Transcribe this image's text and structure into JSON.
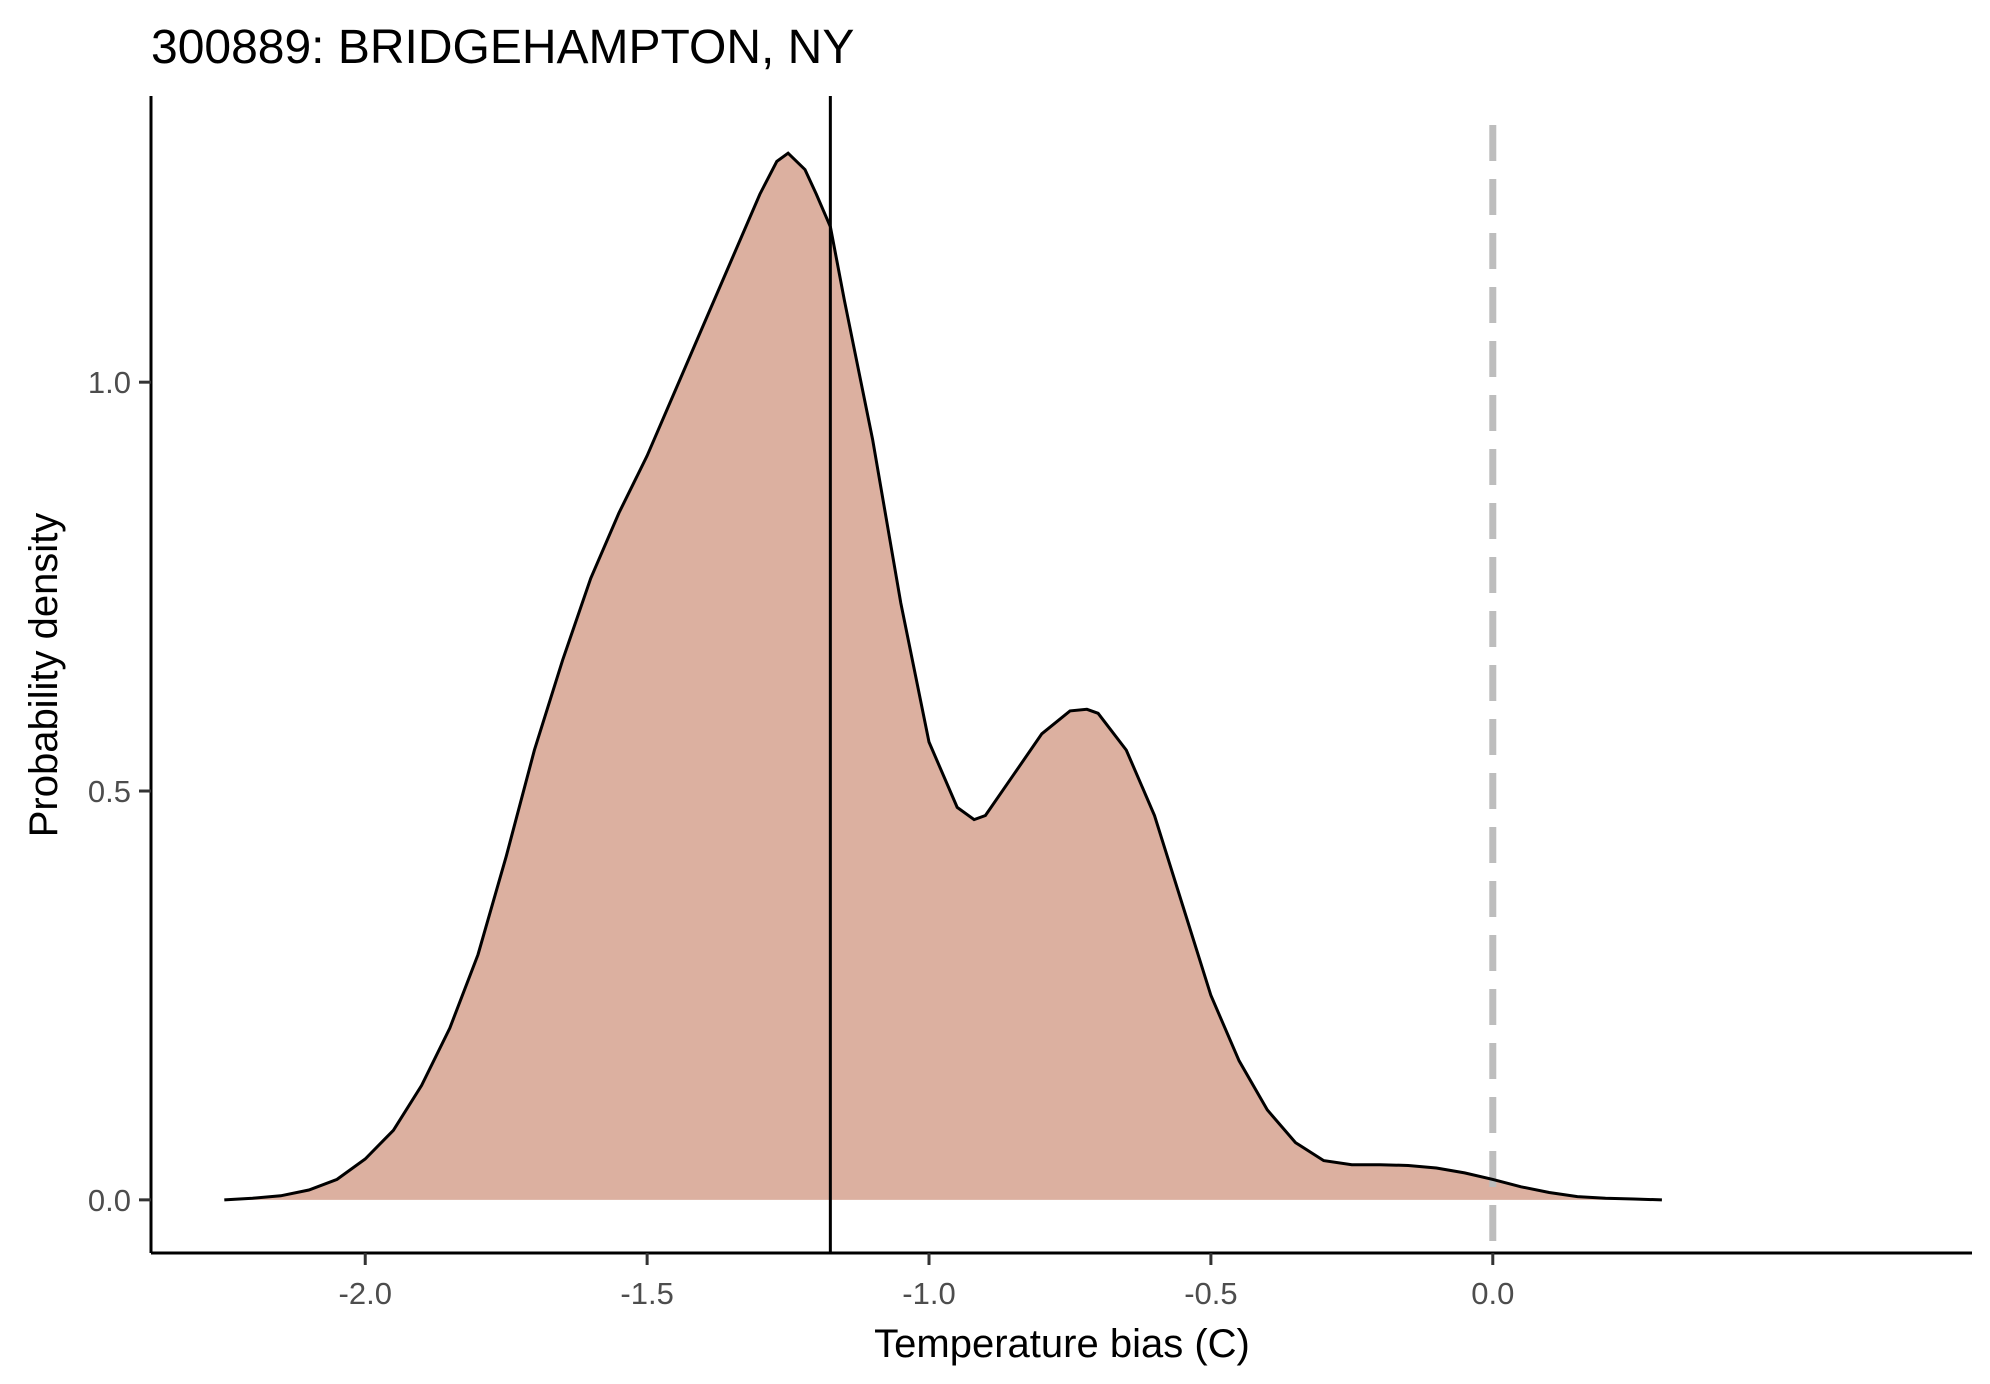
{
  "chart_data": {
    "type": "area",
    "title": "300889: BRIDGEHAMPTON, NY",
    "xlabel": "Temperature bias (C)",
    "ylabel": "Probability density",
    "xlim": [
      -2.38,
      0.85
    ],
    "ylim": [
      -0.065,
      1.35
    ],
    "x_ticks": [
      -2.0,
      -1.5,
      -1.0,
      -0.5,
      0.0
    ],
    "x_tick_labels": [
      "-2.0",
      "-1.5",
      "-1.0",
      "-0.5",
      "0.0"
    ],
    "y_ticks": [
      0.0,
      0.5,
      1.0
    ],
    "y_tick_labels": [
      "0.0",
      "0.5",
      "1.0"
    ],
    "grid": false,
    "fill_color": "#dcb0a0",
    "line_color": "#000000",
    "mean_line": {
      "x": -1.175,
      "color": "#000000"
    },
    "reference_line": {
      "x": 0.0,
      "color": "#bdbdbd",
      "style": "dashed"
    },
    "series": [
      {
        "x": [
          -2.25,
          -2.2,
          -2.15,
          -2.1,
          -2.05,
          -2.0,
          -1.95,
          -1.9,
          -1.85,
          -1.8,
          -1.75,
          -1.7,
          -1.65,
          -1.6,
          -1.55,
          -1.5,
          -1.45,
          -1.4,
          -1.35,
          -1.3,
          -1.27,
          -1.25,
          -1.22,
          -1.2,
          -1.175,
          -1.15,
          -1.1,
          -1.05,
          -1.0,
          -0.95,
          -0.92,
          -0.9,
          -0.85,
          -0.8,
          -0.75,
          -0.72,
          -0.7,
          -0.65,
          -0.6,
          -0.55,
          -0.5,
          -0.45,
          -0.4,
          -0.35,
          -0.3,
          -0.25,
          -0.2,
          -0.15,
          -0.1,
          -0.05,
          0.0,
          0.05,
          0.1,
          0.15,
          0.2,
          0.25,
          0.3
        ],
        "y": [
          0.0,
          0.002,
          0.005,
          0.012,
          0.025,
          0.05,
          0.085,
          0.14,
          0.21,
          0.3,
          0.42,
          0.55,
          0.66,
          0.76,
          0.84,
          0.91,
          0.99,
          1.07,
          1.15,
          1.23,
          1.27,
          1.28,
          1.26,
          1.23,
          1.19,
          1.1,
          0.93,
          0.73,
          0.56,
          0.48,
          0.465,
          0.47,
          0.52,
          0.57,
          0.598,
          0.6,
          0.595,
          0.55,
          0.47,
          0.36,
          0.25,
          0.17,
          0.11,
          0.07,
          0.048,
          0.043,
          0.043,
          0.042,
          0.039,
          0.033,
          0.025,
          0.016,
          0.009,
          0.004,
          0.002,
          0.001,
          0.0
        ]
      }
    ]
  }
}
